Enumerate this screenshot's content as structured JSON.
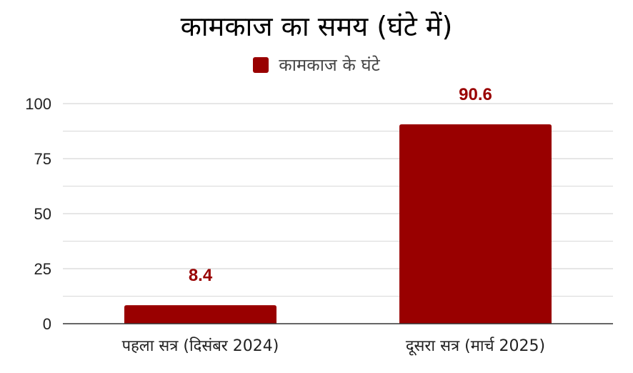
{
  "chart_data": {
    "type": "bar",
    "title": "कामकाज का समय (घंटे में)",
    "categories": [
      "पहला सत्र (दिसंबर 2024)",
      "दूसरा सत्र (मार्च 2025)"
    ],
    "series": [
      {
        "name": "कामकाज के घंटे",
        "values": [
          8.4,
          90.6
        ],
        "labels": [
          "8.4",
          "90.6"
        ]
      }
    ],
    "yticks": [
      "0",
      "25",
      "50",
      "75",
      "100"
    ],
    "ylim": [
      0,
      100
    ],
    "minor_gridlines": [
      12.5,
      37.5,
      62.5,
      87.5
    ],
    "grid": true,
    "legend": "top-center",
    "colors": {
      "bar": "#990000",
      "data_label": "#990000",
      "grid": "#d9d9d9",
      "axis": "#333333"
    }
  }
}
